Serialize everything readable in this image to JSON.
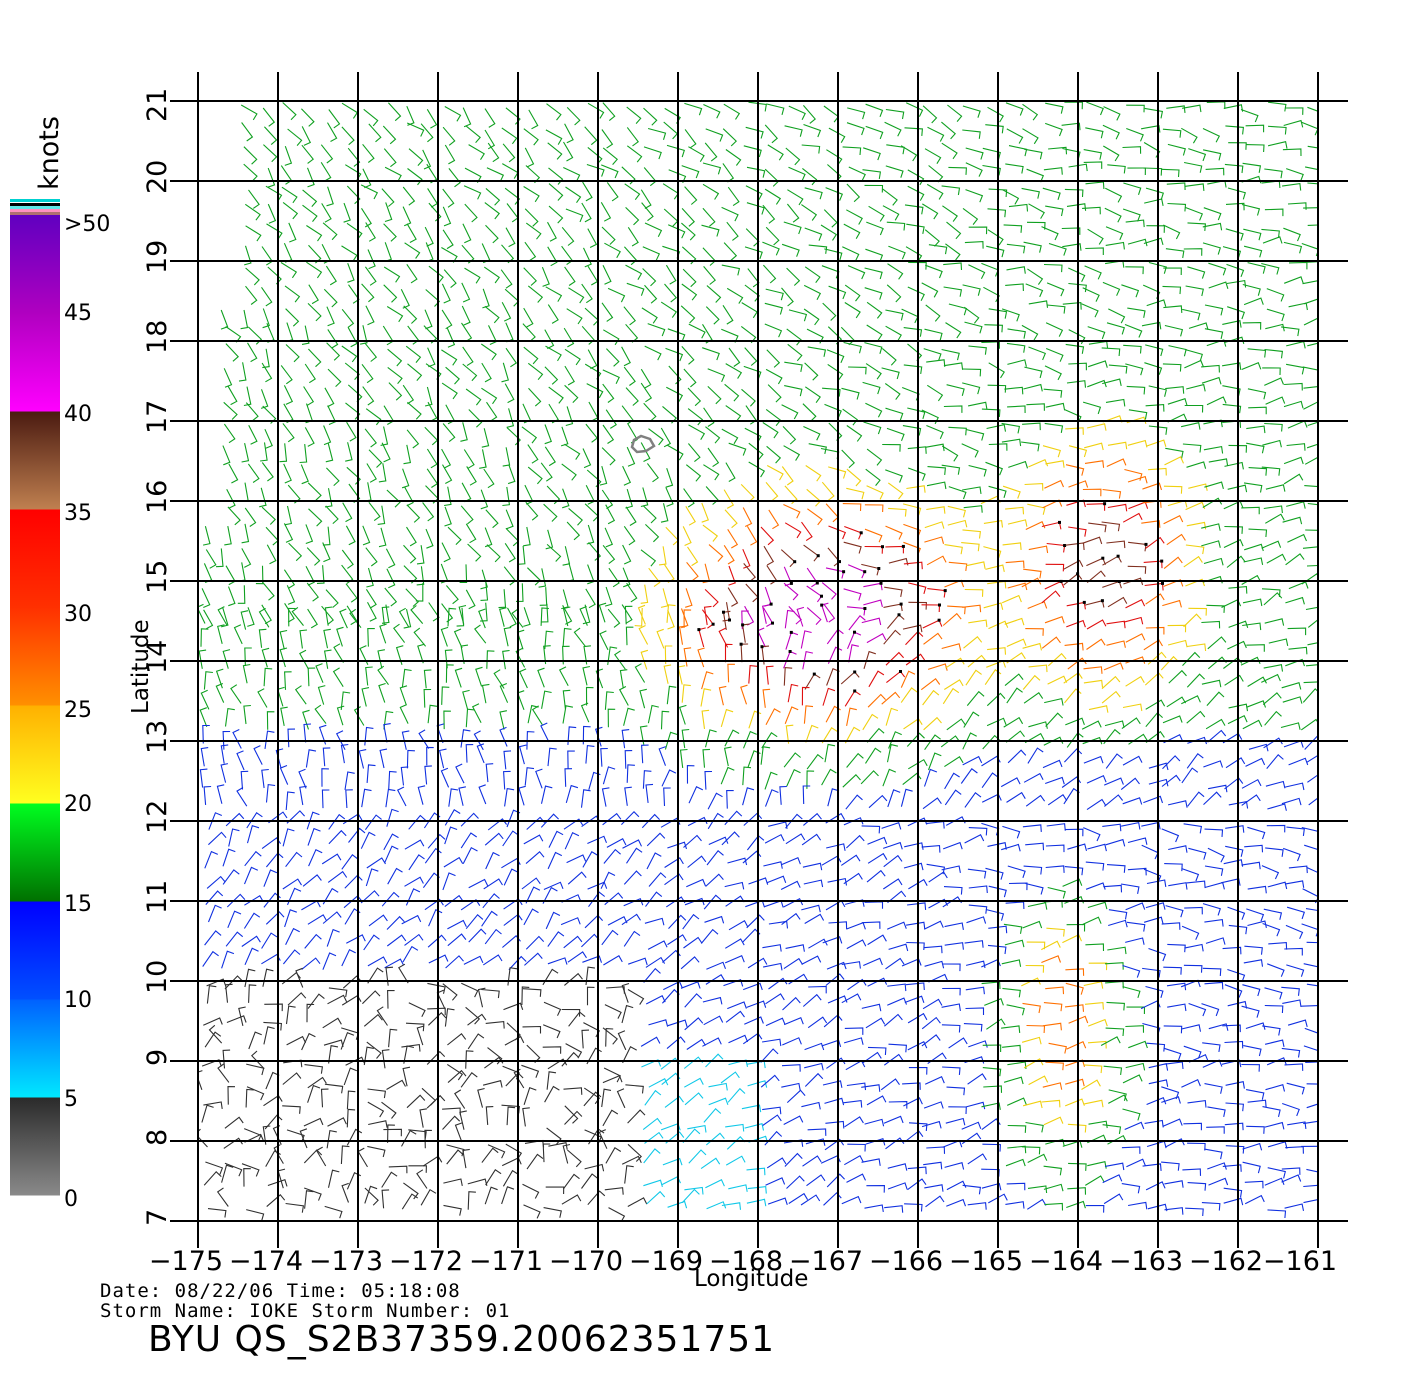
{
  "map": {
    "lon_range": [
      -175,
      -161
    ],
    "lat_range": [
      7,
      21
    ],
    "x_ticks": [
      "−175",
      "−174",
      "−173",
      "−172",
      "−171",
      "−170",
      "−169",
      "−168",
      "−167",
      "−166",
      "−165",
      "−164",
      "−163",
      "−162",
      "−161"
    ],
    "y_ticks": [
      "7",
      "8",
      "9",
      "10",
      "11",
      "12",
      "13",
      "14",
      "15",
      "16",
      "17",
      "18",
      "19",
      "20",
      "21"
    ],
    "xlabel": "Longitude",
    "ylabel": "Latitude",
    "grid": true,
    "vector_type": "wind barbs",
    "land_feature": "small island near 16.8N, -169.5"
  },
  "colorbar": {
    "unit": "knots",
    "labels": [
      ">50",
      "45",
      "40",
      "35",
      "30",
      "25",
      "20",
      "15",
      "10",
      "5",
      "0"
    ],
    "bands": [
      {
        "range": "0-5",
        "colors": [
          "#8a8a8a",
          "#2a2a2a"
        ]
      },
      {
        "range": "5-10",
        "colors": [
          "#00e8ff",
          "#0060ff"
        ]
      },
      {
        "range": "10-15",
        "colors": [
          "#0050ff",
          "#0000ff"
        ]
      },
      {
        "range": "15-20",
        "colors": [
          "#007000",
          "#00ff20"
        ]
      },
      {
        "range": "20-25",
        "colors": [
          "#ffff20",
          "#ffb000"
        ]
      },
      {
        "range": "25-30",
        "colors": [
          "#ff9000",
          "#ff3000"
        ]
      },
      {
        "range": "30-35",
        "colors": [
          "#ff3000",
          "#ff0000"
        ]
      },
      {
        "range": "35-40",
        "colors": [
          "#c08050",
          "#4a1a10"
        ]
      },
      {
        "range": "40-45",
        "colors": [
          "#ff00ff",
          "#b000c0"
        ]
      },
      {
        "range": "45-50",
        "colors": [
          "#b000c0",
          "#6000c0"
        ]
      }
    ]
  },
  "info": {
    "date_line": "Date: 08/22/06   Time: 05:18:08",
    "storm_line": "Storm Name: IOKE   Storm Number: 01",
    "product": "BYU QS_S2B37359.20062351751"
  }
}
